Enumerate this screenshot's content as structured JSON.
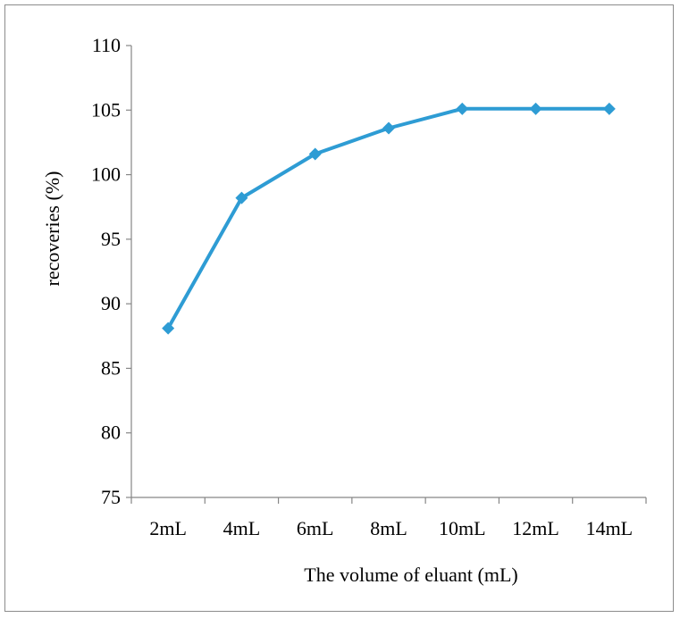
{
  "chart_data": {
    "type": "line",
    "title": "",
    "xlabel": "The volume of eluant (mL)",
    "ylabel": "recoveries (%)",
    "categories": [
      "2mL",
      "4mL",
      "6mL",
      "8mL",
      "10mL",
      "12mL",
      "14mL"
    ],
    "series": [
      {
        "values": [
          88.1,
          98.2,
          101.6,
          103.6,
          105.1,
          105.1,
          105.1
        ],
        "color": "#2e9cd4",
        "marker": "diamond"
      }
    ],
    "ylim": [
      75,
      110
    ],
    "yticks": [
      75,
      80,
      85,
      90,
      95,
      100,
      105,
      110
    ],
    "grid": false,
    "legend": "none"
  }
}
